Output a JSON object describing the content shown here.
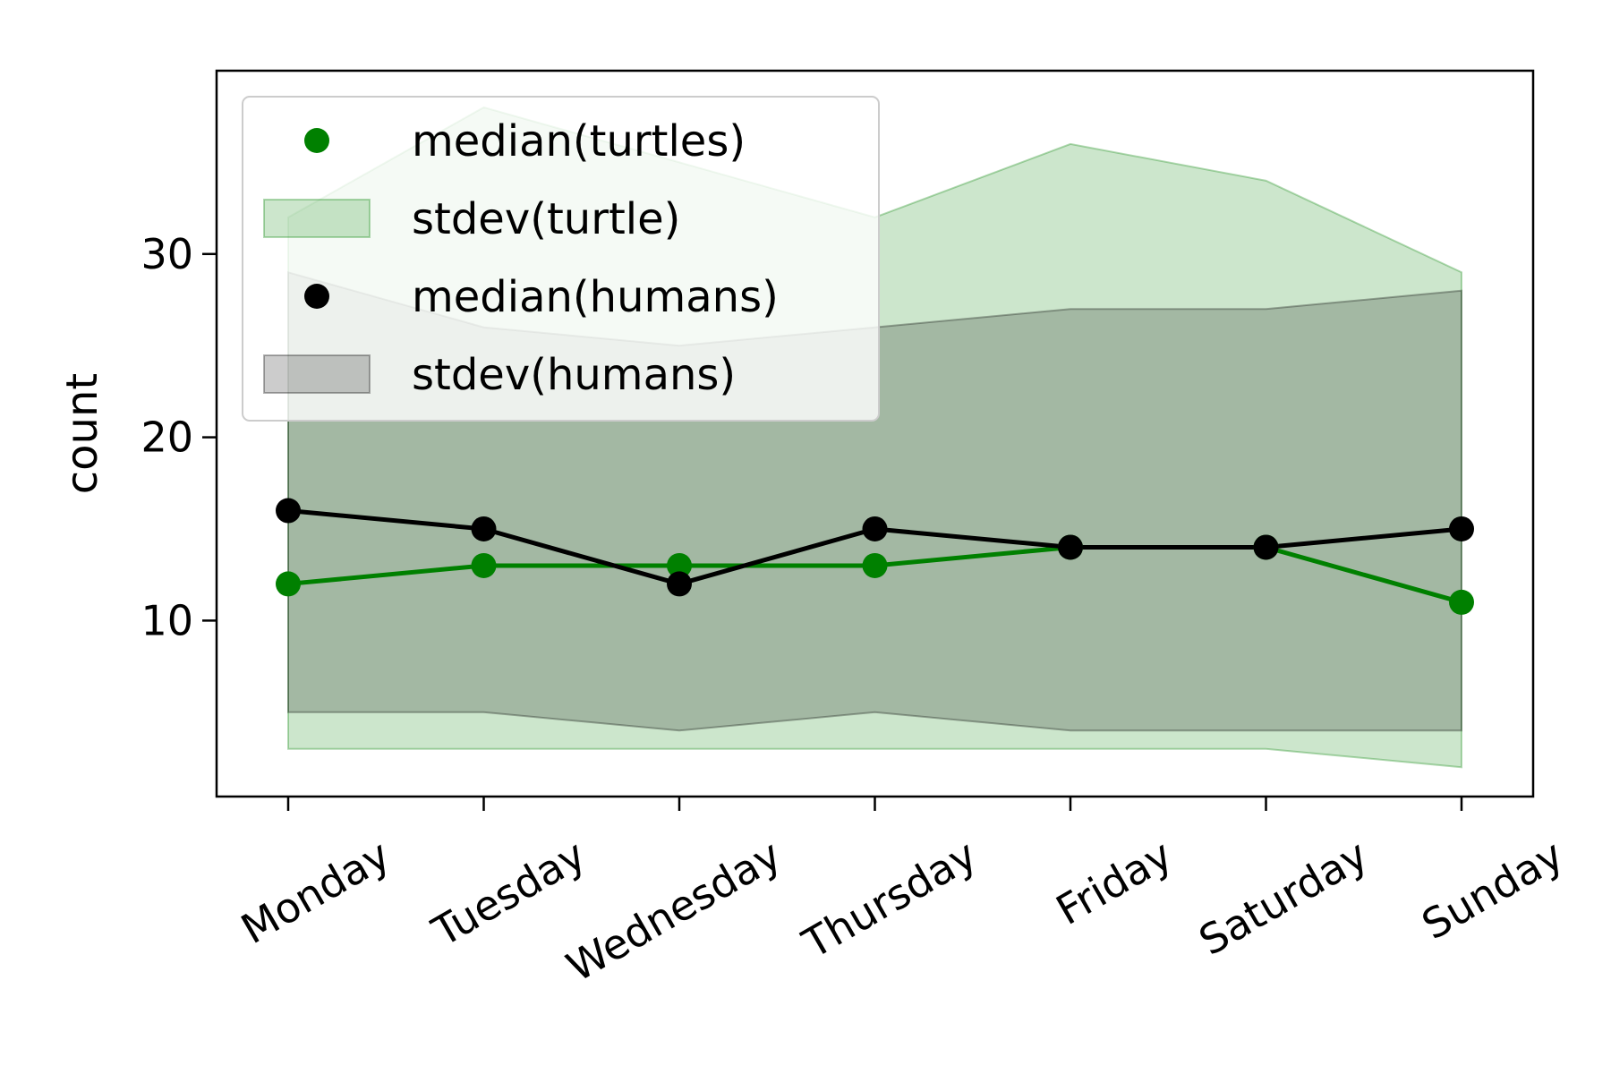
{
  "chart_data": {
    "type": "line",
    "title": "",
    "xlabel": "",
    "ylabel": "count",
    "categories": [
      "Monday",
      "Tuesday",
      "Wednesday",
      "Thursday",
      "Friday",
      "Saturday",
      "Sunday"
    ],
    "yticks": [
      10,
      20,
      30
    ],
    "ylim": [
      0.4,
      40
    ],
    "grid": false,
    "legend_position": "upper-left",
    "series": [
      {
        "name": "median(turtles)",
        "kind": "line-markers",
        "color": "#008000",
        "values": [
          12,
          13,
          13,
          13,
          14,
          14,
          11
        ]
      },
      {
        "name": "stdev(turtle)",
        "kind": "band",
        "color": "#008000",
        "opacity": 0.2,
        "lower": [
          3,
          3,
          3,
          3,
          3,
          3,
          2
        ],
        "upper": [
          32,
          38,
          35,
          32,
          36,
          34,
          29
        ]
      },
      {
        "name": "median(humans)",
        "kind": "line-markers",
        "color": "#000000",
        "values": [
          16,
          15,
          12,
          15,
          14,
          14,
          15
        ]
      },
      {
        "name": "stdev(humans)",
        "kind": "band",
        "color": "#000000",
        "opacity": 0.2,
        "lower": [
          5,
          5,
          4,
          5,
          4,
          4,
          4
        ],
        "upper": [
          29,
          26,
          25,
          26,
          27,
          27,
          28
        ]
      }
    ],
    "legend_order": [
      "median(turtles)",
      "stdev(turtle)",
      "median(humans)",
      "stdev(humans)"
    ]
  }
}
